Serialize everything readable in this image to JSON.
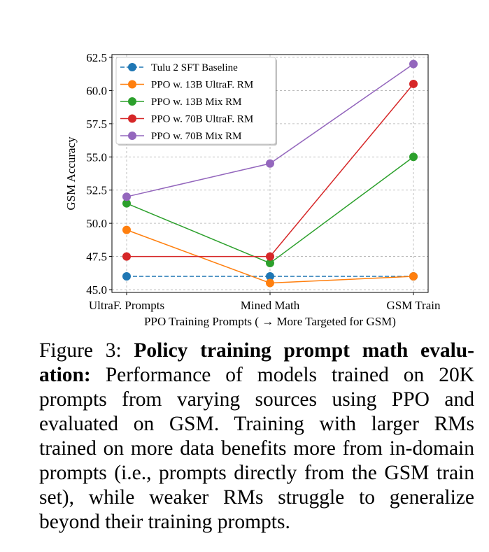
{
  "chart_data": {
    "type": "line",
    "categories": [
      "UltraF. Prompts",
      "Mined Math",
      "GSM Train"
    ],
    "xlabel": "PPO Training Prompts ( → More Targeted for GSM)",
    "ylabel": "GSM Accuracy",
    "ylim": [
      45.0,
      62.5
    ],
    "yticks": [
      "45.0",
      "47.5",
      "50.0",
      "52.5",
      "55.0",
      "57.5",
      "60.0",
      "62.5"
    ],
    "ytick_values": [
      45.0,
      47.5,
      50.0,
      52.5,
      55.0,
      57.5,
      60.0,
      62.5
    ],
    "grid": true,
    "legend_position": "top-left",
    "series": [
      {
        "name": "Tulu 2 SFT Baseline",
        "values": [
          46.0,
          46.0,
          46.0
        ],
        "color": "#1f77b4",
        "dashed": true
      },
      {
        "name": "PPO w. 13B UltraF. RM",
        "values": [
          49.5,
          45.5,
          46.0
        ],
        "color": "#ff7f0e",
        "dashed": false
      },
      {
        "name": "PPO w. 13B Mix RM",
        "values": [
          51.5,
          47.0,
          55.0
        ],
        "color": "#2ca02c",
        "dashed": false
      },
      {
        "name": "PPO w. 70B UltraF. RM",
        "values": [
          47.5,
          47.5,
          60.5
        ],
        "color": "#d62728",
        "dashed": false
      },
      {
        "name": "PPO w. 70B Mix RM",
        "values": [
          52.0,
          54.5,
          62.0
        ],
        "color": "#9467bd",
        "dashed": false
      }
    ]
  },
  "caption": {
    "label": "Figure 3:",
    "title_a": "Policy training prompt math evalu-",
    "title_b": "ation:",
    "body": "Performance of models trained on 20K prompts from varying sources using PPO and evaluated on GSM. Training with larger RMs trained on more data benefits more from in-domain prompts (i.e., prompts directly from the GSM train set), while weaker RMs struggle to generalize beyond their training prompts."
  }
}
